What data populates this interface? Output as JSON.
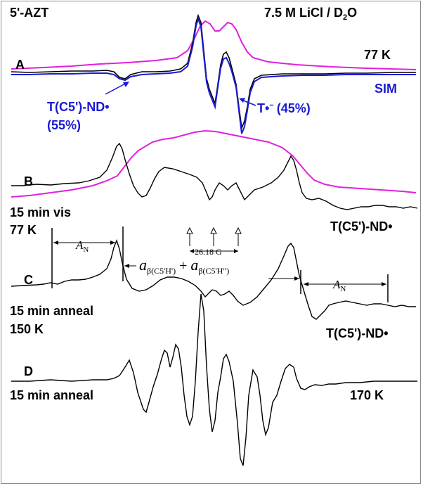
{
  "figure": {
    "sample": "5'-AZT",
    "solvent_main": "7.5 M LiCl / D",
    "solvent_sub": "2",
    "solvent_tail": "O",
    "temp_a": "77 K",
    "sim_label": "SIM",
    "radical_nd": "T(C5')-ND•",
    "radical_nd_pct": "(55%)",
    "radical_t_main": "T•",
    "radical_t_sup": "−",
    "radical_t_pct": "(45%)",
    "panel_a": "A",
    "panel_b": "B",
    "panel_c": "C",
    "panel_d": "D",
    "b_cond_1": "15 min vis",
    "b_cond_2": "77 K",
    "b_species": "T(C5')-ND•",
    "c_cond_1": "15 min anneal",
    "c_cond_2": "150 K",
    "c_species": "T(C5')-ND•",
    "d_cond": "15 min anneal",
    "d_temp": "170 K",
    "spacing": "26.18 G",
    "a_n": "A",
    "a_n_sub": "N",
    "a_beta": "a",
    "a_beta_sub1": "β(C5'H')",
    "a_beta_plus": " + ",
    "a_beta_sub2": "β(C5'H″)"
  },
  "colors": {
    "experimental": "#000000",
    "simulation": "#1a1ad6",
    "overlay": "#e020e0",
    "label_blue": "#1a1ad6"
  }
}
